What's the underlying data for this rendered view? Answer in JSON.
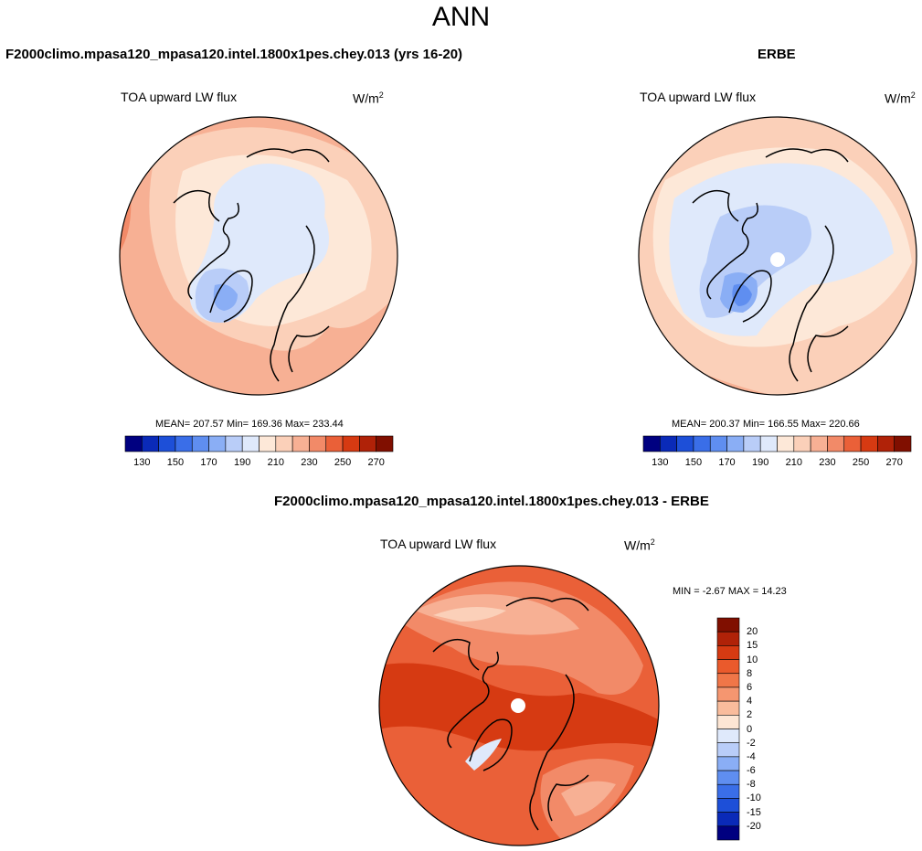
{
  "page": {
    "title": "ANN"
  },
  "panels": [
    {
      "id": "model",
      "title": "F2000climo.mpasa120_mpasa120.intel.1800x1pes.chey.013 (yrs 16-20)",
      "variable": "TOA upward LW flux",
      "units_base": "W/m",
      "units_exp": "2",
      "stats": "MEAN= 207.57  Min= 169.36  Max= 233.44",
      "colorbar_ticks": [
        "130",
        "150",
        "170",
        "190",
        "210",
        "230",
        "250",
        "270"
      ]
    },
    {
      "id": "obs",
      "title": "ERBE",
      "variable": "TOA upward LW flux",
      "units_base": "W/m",
      "units_exp": "2",
      "stats": "MEAN= 200.37  Min= 166.55  Max= 220.66",
      "colorbar_ticks": [
        "130",
        "150",
        "170",
        "190",
        "210",
        "230",
        "250",
        "270"
      ]
    },
    {
      "id": "diff",
      "title": "F2000climo.mpasa120_mpasa120.intel.1800x1pes.chey.013 - ERBE",
      "variable": "TOA upward LW flux",
      "units_base": "W/m",
      "units_exp": "2",
      "stats": "MIN =  -2.67 MAX =  14.23",
      "colorbar_ticks": [
        "20",
        "15",
        "10",
        "8",
        "6",
        "4",
        "2",
        "0",
        "-2",
        "-4",
        "-6",
        "-8",
        "-10",
        "-15",
        "-20"
      ]
    }
  ],
  "colors": {
    "abs_scale": [
      "#000080",
      "#0a2ab8",
      "#1d4fd8",
      "#3a6ee8",
      "#5f8ef0",
      "#8aaef5",
      "#b9cdf8",
      "#dfe9fb",
      "#fde8d8",
      "#fbd0b9",
      "#f7b094",
      "#f28a68",
      "#ea6038",
      "#d63a12",
      "#b02208",
      "#800f00"
    ],
    "diff_scale": [
      "#800f00",
      "#b02208",
      "#d63a12",
      "#ea5a2c",
      "#f07648",
      "#f59670",
      "#f9bc9c",
      "#fde6d4",
      "#dfe9fb",
      "#b9cdf8",
      "#8aaef5",
      "#5f8ef0",
      "#3a6ee8",
      "#1d4fd8",
      "#0a2ab8",
      "#000080"
    ],
    "map_model": {
      "background": "#f7b094",
      "band_mid": "#fbd0b9",
      "band_inner": "#fde8d8",
      "cold": "#dfe9fb",
      "colder": "#b9cdf8",
      "coldest": "#8aaef5",
      "warm": "#f28a68"
    },
    "map_obs": {
      "background": "#fbd0b9",
      "band_inner": "#fde8d8",
      "cold": "#dfe9fb",
      "colder": "#b9cdf8",
      "coldest": "#8aaef5",
      "deep": "#5f8ef0",
      "warm": "#f7b094"
    },
    "map_diff": {
      "background": "#ea6038",
      "dark": "#d63a12",
      "light": "#f28a68",
      "lighter": "#f7b094",
      "pale": "#fbd0b9",
      "cool": "#dfe9fb"
    }
  }
}
